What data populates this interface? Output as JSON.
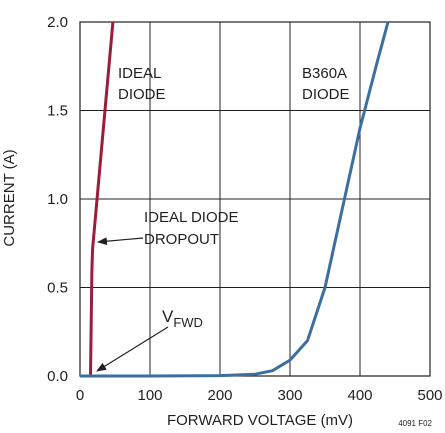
{
  "chart_data": {
    "type": "line",
    "title": "",
    "xlabel": "FORWARD VOLTAGE (mV)",
    "ylabel": "CURRENT (A)",
    "xlim": [
      0,
      500
    ],
    "ylim": [
      0,
      2.0
    ],
    "x_ticks": [
      "0",
      "100",
      "200",
      "300",
      "400",
      "500"
    ],
    "y_ticks": [
      "0.0",
      "0.5",
      "1.0",
      "1.5",
      "2.0"
    ],
    "grid": true,
    "figure_id": "4091 F02",
    "series": [
      {
        "name": "IDEAL DIODE",
        "color": "#9b1d3a",
        "points": [
          [
            15,
            0.0
          ],
          [
            16,
            0.3
          ],
          [
            17,
            0.6
          ],
          [
            18,
            0.72
          ],
          [
            30,
            1.25
          ],
          [
            47,
            2.0
          ]
        ]
      },
      {
        "name": "B360A DIODE",
        "color": "#3c6fa0",
        "points": [
          [
            0,
            0.0
          ],
          [
            100,
            0.0
          ],
          [
            200,
            0.002
          ],
          [
            250,
            0.01
          ],
          [
            275,
            0.03
          ],
          [
            300,
            0.09
          ],
          [
            325,
            0.2
          ],
          [
            350,
            0.5
          ],
          [
            375,
            0.95
          ],
          [
            400,
            1.4
          ],
          [
            425,
            1.78
          ],
          [
            440,
            2.0
          ]
        ]
      }
    ],
    "annotations": {
      "ideal_label": [
        "IDEAL",
        "DIODE"
      ],
      "b360a_label": [
        "B360A",
        "DIODE"
      ],
      "dropout_label": [
        "IDEAL DIODE",
        "DROPOUT"
      ],
      "vfwd_main": "V",
      "vfwd_sub": "FWD"
    }
  }
}
